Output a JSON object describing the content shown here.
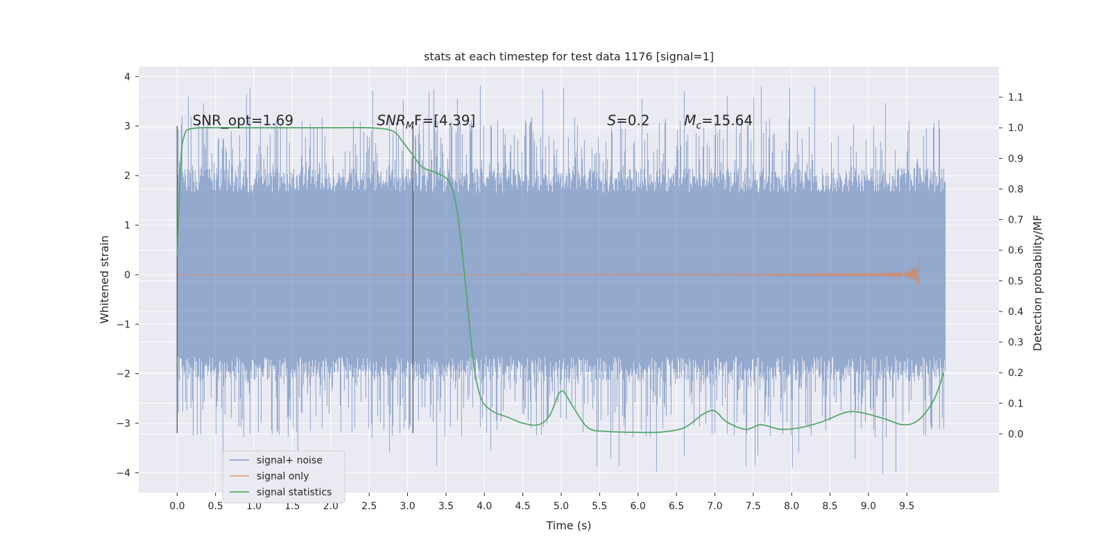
{
  "chart_data": {
    "type": "line",
    "title": "stats at each timestep for test data 1176 [signal=1]",
    "xlabel": "Time (s)",
    "ylabel": "Whitened strain",
    "ylabel_right": "Detection probability/MF",
    "xlim": [
      -0.5,
      10.7
    ],
    "ylim": [
      -4.4,
      4.2
    ],
    "ylim_right": [
      -0.1917,
      1.2
    ],
    "x_ticks": [
      0.0,
      0.5,
      1.0,
      1.5,
      2.0,
      2.5,
      3.0,
      3.5,
      4.0,
      4.5,
      5.0,
      5.5,
      6.0,
      6.5,
      7.0,
      7.5,
      8.0,
      8.5,
      9.0,
      9.5
    ],
    "x_tick_labels": [
      "0.0",
      "0.5",
      "1.0",
      "1.5",
      "2.0",
      "2.5",
      "3.0",
      "3.5",
      "4.0",
      "4.5",
      "5.0",
      "5.5",
      "6.0",
      "6.5",
      "7.0",
      "7.5",
      "8.0",
      "8.5",
      "9.0",
      "9.5"
    ],
    "y_ticks": [
      -4,
      -3,
      -2,
      -1,
      0,
      1,
      2,
      3,
      4
    ],
    "y_tick_labels": [
      "−4",
      "−3",
      "−2",
      "−1",
      "0",
      "1",
      "2",
      "3",
      "4"
    ],
    "y_right_ticks": [
      0.0,
      0.1,
      0.2,
      0.3,
      0.4,
      0.5,
      0.6,
      0.7,
      0.8,
      0.9,
      1.0,
      1.1
    ],
    "y_right_tick_labels": [
      "0.0",
      "0.1",
      "0.2",
      "0.3",
      "0.4",
      "0.5",
      "0.6",
      "0.7",
      "0.8",
      "0.9",
      "1.0",
      "1.1"
    ],
    "grid": true,
    "legend_position": "lower-left",
    "vlines": [
      {
        "x": 0.0,
        "ymin": -3.2,
        "ymax": 3.0
      },
      {
        "x": 3.07,
        "ymin": -3.2,
        "ymax": 3.0
      }
    ],
    "series": [
      {
        "name": "signal+ noise",
        "color": "#4c72b0",
        "axis": "left",
        "kind": "noise",
        "x_range": [
          0.0,
          10.0
        ],
        "typical_amplitude": 1.9,
        "max_positive": 3.85,
        "min_negative": -4.05
      },
      {
        "name": "signal only",
        "color": "#dd8452",
        "axis": "left",
        "kind": "chirp",
        "x_range": [
          0.0,
          9.67
        ],
        "peak_amplitude": 0.4
      },
      {
        "name": "signal statistics",
        "color": "#55a868",
        "axis": "right",
        "x": [
          0.0,
          0.05,
          0.1,
          0.15,
          0.3,
          0.6,
          1.0,
          2.0,
          2.5,
          2.8,
          2.95,
          3.1,
          3.2,
          3.4,
          3.55,
          3.65,
          3.75,
          3.85,
          3.95,
          4.1,
          4.3,
          4.5,
          4.7,
          4.85,
          5.0,
          5.15,
          5.35,
          5.6,
          6.0,
          6.3,
          6.6,
          6.85,
          7.0,
          7.15,
          7.4,
          7.6,
          7.85,
          8.1,
          8.4,
          8.7,
          8.9,
          9.2,
          9.45,
          9.65,
          9.85,
          9.98
        ],
        "values": [
          0.58,
          0.9,
          0.98,
          0.995,
          1.0,
          1.0,
          1.0,
          1.0,
          1.0,
          0.99,
          0.95,
          0.9,
          0.87,
          0.85,
          0.82,
          0.72,
          0.5,
          0.25,
          0.12,
          0.075,
          0.055,
          0.035,
          0.03,
          0.06,
          0.14,
          0.09,
          0.02,
          0.008,
          0.005,
          0.006,
          0.02,
          0.065,
          0.075,
          0.04,
          0.015,
          0.03,
          0.015,
          0.02,
          0.04,
          0.07,
          0.07,
          0.05,
          0.03,
          0.045,
          0.11,
          0.2
        ]
      }
    ],
    "annotations": [
      {
        "x": 0.2,
        "y": 3.0,
        "text": "SNR_opt=1.69"
      },
      {
        "x": 2.6,
        "y": 3.0,
        "base": "SNR",
        "sub": "M",
        "rest": "F=[4.39]"
      },
      {
        "x": 5.6,
        "y": 3.0,
        "base": "S",
        "rest": "=0.2"
      },
      {
        "x": 6.6,
        "y": 3.0,
        "base": "M",
        "sub": "c",
        "rest": "=15.64"
      }
    ]
  }
}
